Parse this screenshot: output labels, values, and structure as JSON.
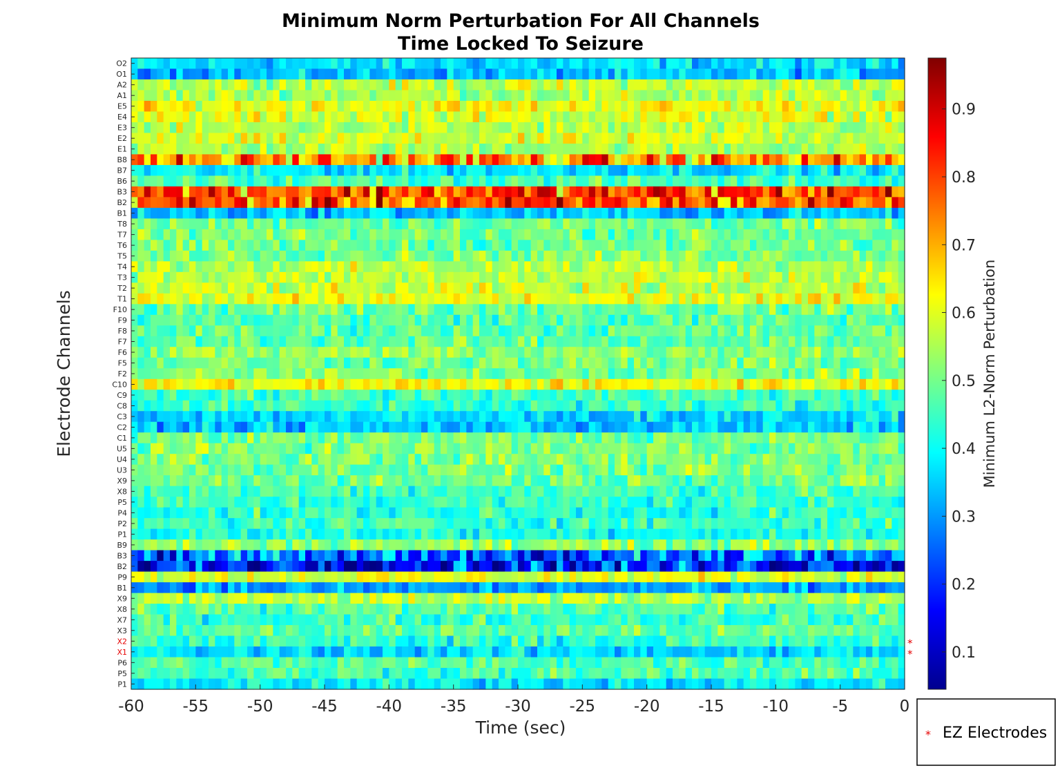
{
  "chart_data": {
    "type": "heatmap",
    "title_lines": [
      "Minimum Norm Perturbation For All Channels",
      "Time Locked To Seizure"
    ],
    "xlabel": "Time (sec)",
    "ylabel": "Electrode Channels",
    "colorbar_label": "Minimum L2-Norm Perturbation",
    "colormap": "jet",
    "xlim": [
      -60,
      0
    ],
    "x_ticks": [
      -60,
      -55,
      -50,
      -45,
      -40,
      -35,
      -30,
      -25,
      -20,
      -15,
      -10,
      -5,
      0
    ],
    "x_tick_labels": [
      "-60",
      "-55",
      "-50",
      "-45",
      "-40",
      "-35",
      "-30",
      "-25",
      "-20",
      "-15",
      "-10",
      "-5",
      "0"
    ],
    "clim": [
      0.045,
      0.975
    ],
    "colorbar_ticks": [
      0.1,
      0.2,
      0.3,
      0.4,
      0.5,
      0.6,
      0.7,
      0.8,
      0.9
    ],
    "colorbar_tick_labels": [
      "0.1",
      "0.2",
      "0.3",
      "0.4",
      "0.5",
      "0.6",
      "0.7",
      "0.8",
      "0.9"
    ],
    "time_bins": 120,
    "channels": [
      "O2",
      "O1",
      "A2",
      "A1",
      "E5",
      "E4",
      "E3",
      "E2",
      "E1",
      "B8",
      "B7",
      "B6",
      "B3",
      "B2",
      "B1",
      "T8",
      "T7",
      "T6",
      "T5",
      "T4",
      "T3",
      "T2",
      "T1",
      "F10",
      "F9",
      "F8",
      "F7",
      "F6",
      "F5",
      "F2",
      "C10",
      "C9",
      "C8",
      "C3",
      "C2",
      "C1",
      "U5",
      "U4",
      "U3",
      "X9",
      "X8",
      "P5",
      "P4",
      "P2",
      "P1",
      "B9",
      "B3",
      "B2",
      "P9",
      "B1",
      "X9",
      "X8",
      "X7",
      "X3",
      "X2",
      "X1",
      "P6",
      "P5",
      "P1"
    ],
    "channel_mean_values": [
      0.36,
      0.33,
      0.57,
      0.55,
      0.62,
      0.59,
      0.55,
      0.58,
      0.55,
      0.72,
      0.38,
      0.46,
      0.8,
      0.78,
      0.34,
      0.5,
      0.5,
      0.49,
      0.52,
      0.56,
      0.56,
      0.57,
      0.6,
      0.5,
      0.47,
      0.48,
      0.48,
      0.53,
      0.5,
      0.51,
      0.62,
      0.46,
      0.44,
      0.36,
      0.34,
      0.5,
      0.51,
      0.51,
      0.5,
      0.5,
      0.46,
      0.44,
      0.43,
      0.45,
      0.42,
      0.53,
      0.25,
      0.2,
      0.6,
      0.3,
      0.56,
      0.47,
      0.45,
      0.48,
      0.44,
      0.36,
      0.47,
      0.46,
      0.38
    ],
    "ez_electrodes": [
      "X2",
      "X1"
    ],
    "legend": {
      "marker": "*",
      "label": "EZ Electrodes",
      "placement": "bottom-right outside"
    },
    "grid": false
  },
  "colors": {
    "ez_marker": "#e60000",
    "axis": "#262626"
  }
}
